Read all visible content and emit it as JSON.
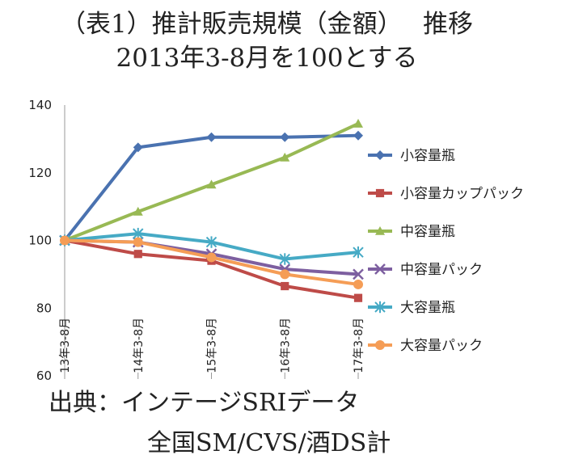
{
  "title": "（表1）推計販売規模（金額）　 推移",
  "subtitle": "2013年3-8月を100とする",
  "source_line1": "出典：インテージSRIデータ",
  "source_line2": "全国SM/CVS/酒DS計",
  "chart_data": {
    "type": "line",
    "categories": [
      "13年3-8月",
      "14年3-8月",
      "15年3-8月",
      "16年3-8月",
      "17年3-8月"
    ],
    "ylim": [
      60,
      140
    ],
    "yticks": [
      60,
      80,
      100,
      120,
      140
    ],
    "grid": false,
    "legend_position": "right",
    "series": [
      {
        "name": "小容量瓶",
        "values": [
          100,
          127.5,
          130.5,
          130.5,
          131
        ],
        "color": "#4a72b0",
        "marker": "diamond"
      },
      {
        "name": "小容量カップパック",
        "values": [
          100,
          96,
          94,
          86.5,
          83
        ],
        "color": "#be4b48",
        "marker": "square"
      },
      {
        "name": "中容量瓶",
        "values": [
          100,
          108.5,
          116.5,
          124.5,
          134.5
        ],
        "color": "#98b954",
        "marker": "triangle"
      },
      {
        "name": "中容量パック",
        "values": [
          100,
          99.5,
          96,
          91.5,
          90
        ],
        "color": "#7d5fa0",
        "marker": "x"
      },
      {
        "name": "大容量瓶",
        "values": [
          100,
          102,
          99.5,
          94.5,
          96.5
        ],
        "color": "#46aac5",
        "marker": "star"
      },
      {
        "name": "大容量パック",
        "values": [
          100,
          99.5,
          95,
          90,
          87
        ],
        "color": "#f59d56",
        "marker": "circle"
      }
    ]
  }
}
